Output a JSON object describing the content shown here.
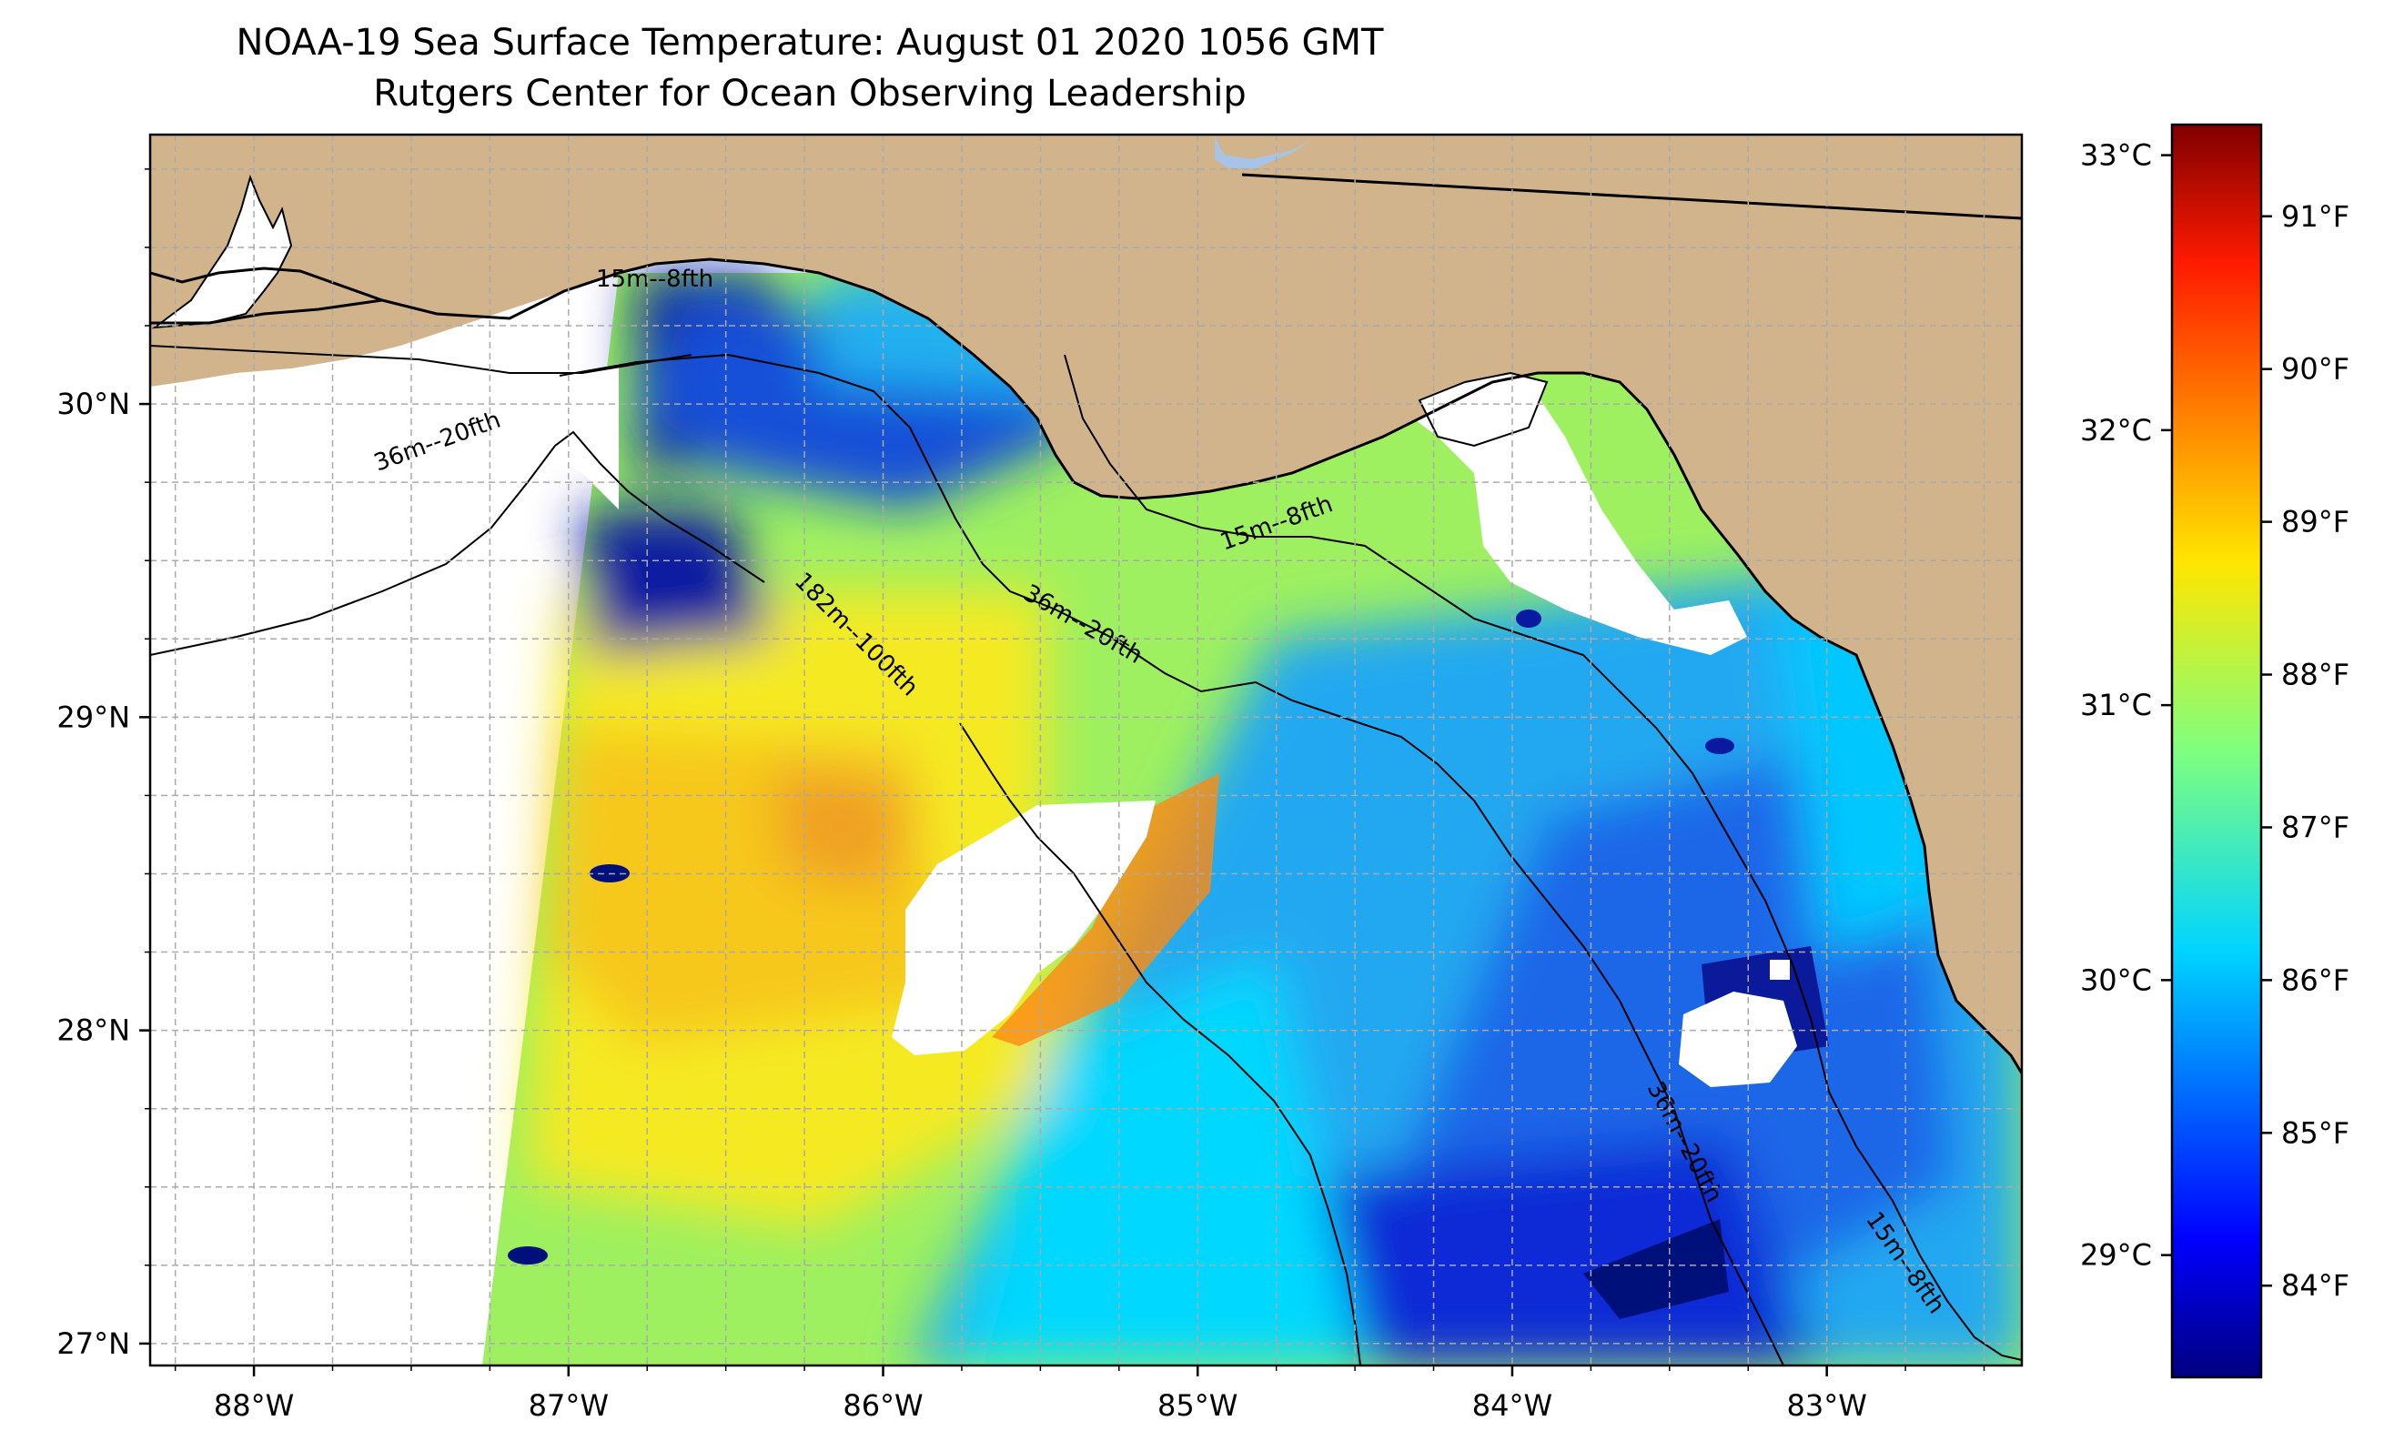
{
  "title": "NOAA-19 Sea Surface Temperature: August 01 2020 1056 GMT",
  "subtitle": "Rutgers Center for Ocean Observing Leadership",
  "map": {
    "lon_range": [
      -88.33,
      -82.38
    ],
    "lat_range": [
      26.93,
      30.86
    ],
    "lon_ticks": [
      {
        "value": -88,
        "label": "88°W"
      },
      {
        "value": -87,
        "label": "87°W"
      },
      {
        "value": -86,
        "label": "86°W"
      },
      {
        "value": -85,
        "label": "85°W"
      },
      {
        "value": -84,
        "label": "84°W"
      },
      {
        "value": -83,
        "label": "83°W"
      }
    ],
    "lat_ticks": [
      {
        "value": 27,
        "label": "27°N"
      },
      {
        "value": 28,
        "label": "28°N"
      },
      {
        "value": 29,
        "label": "29°N"
      },
      {
        "value": 30,
        "label": "30°N"
      }
    ],
    "grid": true,
    "colors": {
      "land": "#d2b48c",
      "nodata": "#ffffff",
      "coast": "#000000",
      "grid": "#aaaaaa",
      "lake": "#a7c4e6"
    },
    "contour_labels": [
      {
        "text": "15m--8fth"
      },
      {
        "text": "36m--20fth"
      },
      {
        "text": "182m--100fth"
      },
      {
        "text": "36m--20fth"
      },
      {
        "text": "15m--8fth"
      },
      {
        "text": "36m--20fth"
      },
      {
        "text": "15m--8fth"
      }
    ]
  },
  "colorbar": {
    "colormap": "jet",
    "celsius_ticks": [
      {
        "value": 29,
        "label": "29°C"
      },
      {
        "value": 30,
        "label": "30°C"
      },
      {
        "value": 31,
        "label": "31°C"
      },
      {
        "value": 32,
        "label": "32°C"
      },
      {
        "value": 33,
        "label": "33°C"
      }
    ],
    "fahrenheit_ticks": [
      {
        "value": 84,
        "label": "84°F"
      },
      {
        "value": 85,
        "label": "85°F"
      },
      {
        "value": 86,
        "label": "86°F"
      },
      {
        "value": 87,
        "label": "87°F"
      },
      {
        "value": 88,
        "label": "88°F"
      },
      {
        "value": 89,
        "label": "89°F"
      },
      {
        "value": 90,
        "label": "90°F"
      },
      {
        "value": 91,
        "label": "91°F"
      }
    ]
  }
}
